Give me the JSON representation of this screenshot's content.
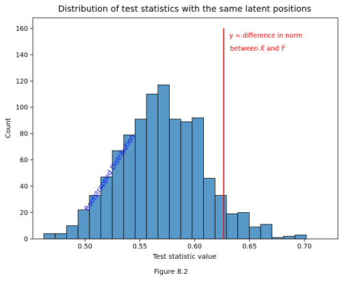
{
  "chart_data": {
    "type": "bar",
    "title": "Distribution of test statistics with the same latent positions",
    "xlabel": "Test statistic value",
    "ylabel": "Count",
    "xlim": [
      0.4525,
      0.7305
    ],
    "ylim": [
      0,
      168
    ],
    "x_ticks": [
      "0.50",
      "0.55",
      "0.60",
      "0.65",
      "0.70"
    ],
    "x_tick_values": [
      0.5,
      0.55,
      0.6,
      0.65,
      0.7
    ],
    "y_ticks": [
      "0",
      "20",
      "40",
      "60",
      "80",
      "100",
      "120",
      "140",
      "160"
    ],
    "y_tick_values": [
      0,
      20,
      40,
      60,
      80,
      100,
      120,
      140,
      160
    ],
    "bin_start": 0.4625,
    "bin_width": 0.0104,
    "counts": [
      4,
      4,
      10,
      22,
      33,
      47,
      67,
      79,
      91,
      110,
      117,
      91,
      89,
      92,
      46,
      33,
      19,
      20,
      9,
      11,
      1,
      2,
      3
    ],
    "bar_color": "#5899c9",
    "bar_edge_color": "#000000",
    "vline": {
      "x": 0.6265,
      "y_top": 160,
      "color": "#ff0000"
    },
    "annotation_red": {
      "line1": "y = difference in norm",
      "line2_prefix": "between ",
      "x_hat": "X̂",
      "conj": " and ",
      "y_hat": "Ŷ",
      "color": "#ff0000"
    },
    "annotation_blue": {
      "text": "Bootstrapped Distribution",
      "color": "#0000ff"
    },
    "grid": false,
    "legend": "none"
  },
  "caption": "Figure 8.2"
}
